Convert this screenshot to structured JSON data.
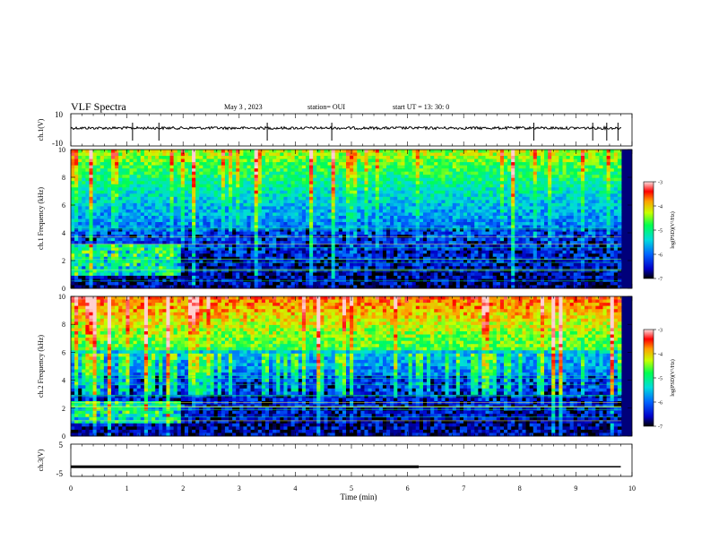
{
  "header": {
    "title": "VLF Spectra",
    "date": "May 3 , 2023",
    "station": "station= OUI",
    "start_ut": "start UT =  13: 30: 0"
  },
  "colors": {
    "colormap": [
      "#000000",
      "#0000c8",
      "#0064ff",
      "#00dcdc",
      "#00ff50",
      "#c8ff00",
      "#ffa000",
      "#ff0000",
      "#ff8080",
      "#ffffff"
    ]
  },
  "chart_data": [
    {
      "type": "line",
      "name": "ch1-voltage",
      "ylabel": "ch.1(V)",
      "ylim": [
        -10,
        10
      ],
      "yticks": [
        "10",
        "-10"
      ],
      "xlim": [
        0,
        10
      ],
      "signal_level": 0
    },
    {
      "type": "heatmap",
      "name": "ch1-spectrogram",
      "ylabel": "ch.1 Frequency (kHz)",
      "ylim": [
        0,
        10
      ],
      "yticks": [
        "0",
        "2",
        "4",
        "6",
        "8",
        "10"
      ],
      "xlim": [
        0,
        10
      ],
      "colorbar": {
        "label": "log(PSD)(V²/Hz)",
        "range": [
          -7,
          -3
        ],
        "ticks": [
          "-3",
          "-4",
          "-5",
          "-6",
          "-7"
        ]
      }
    },
    {
      "type": "heatmap",
      "name": "ch2-spectrogram",
      "ylabel": "ch.2 Frequency (kHz)",
      "ylim": [
        0,
        10
      ],
      "yticks": [
        "0",
        "2",
        "4",
        "6",
        "8",
        "10"
      ],
      "xlim": [
        0,
        10
      ],
      "colorbar": {
        "label": "log(PSD)(V²/Hz)",
        "range": [
          -7,
          -3
        ],
        "ticks": [
          "-3",
          "-4",
          "-5",
          "-6",
          "-7"
        ]
      }
    },
    {
      "type": "line",
      "name": "ch3-voltage",
      "ylabel": "ch.3(V)",
      "ylim": [
        -5,
        5
      ],
      "yticks": [
        "5",
        "-5"
      ],
      "xlim": [
        0,
        10
      ],
      "xlabel": "Time (min)",
      "xticks": [
        "0",
        "1",
        "2",
        "3",
        "4",
        "5",
        "6",
        "7",
        "8",
        "9",
        "10"
      ],
      "segments": [
        {
          "x": [
            0,
            6.2
          ],
          "y": -2
        },
        {
          "x": [
            6.2,
            9.8
          ],
          "y": -2
        }
      ]
    }
  ]
}
